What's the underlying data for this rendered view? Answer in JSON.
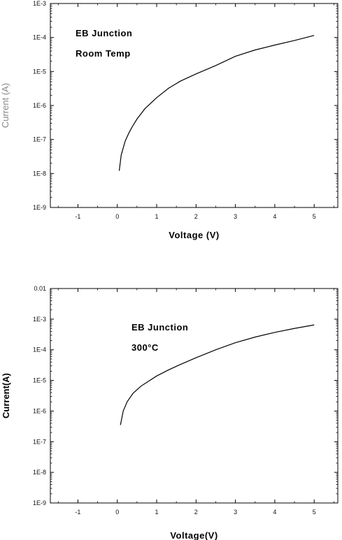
{
  "chart_data": [
    {
      "type": "line",
      "title": "",
      "xlabel": "Voltage (V)",
      "ylabel": "Current (A)",
      "yscale": "log",
      "xlim": [
        -1.7,
        5.6
      ],
      "ylim": [
        1e-09,
        0.001
      ],
      "x_ticks": [
        -1,
        0,
        1,
        2,
        3,
        4,
        5
      ],
      "y_ticks": [
        {
          "value": 0.001,
          "label": "1E-3"
        },
        {
          "value": 0.0001,
          "label": "1E-4"
        },
        {
          "value": 1e-05,
          "label": "1E-5"
        },
        {
          "value": 1e-06,
          "label": "1E-6"
        },
        {
          "value": 1e-07,
          "label": "1E-7"
        },
        {
          "value": 1e-08,
          "label": "1E-8"
        },
        {
          "value": 1e-09,
          "label": "1E-9"
        }
      ],
      "annotations": [
        "EB Junction",
        "Room Temp"
      ],
      "grid": false,
      "series": [
        {
          "x": [
            0.05,
            0.1,
            0.2,
            0.3,
            0.4,
            0.5,
            0.7,
            1.0,
            1.3,
            1.6,
            2.0,
            2.5,
            3.0,
            3.5,
            4.0,
            4.5,
            5.0
          ],
          "y": [
            1.2e-08,
            3.5e-08,
            9e-08,
            1.6e-07,
            2.6e-07,
            4e-07,
            8e-07,
            1.7e-06,
            3.2e-06,
            5.2e-06,
            8.5e-06,
            1.5e-05,
            2.8e-05,
            4.3e-05,
            6e-05,
            8.2e-05,
            0.000115
          ]
        }
      ]
    },
    {
      "type": "line",
      "title": "",
      "xlabel": "Voltage(V)",
      "ylabel": "Current(A)",
      "yscale": "log",
      "xlim": [
        -1.7,
        5.6
      ],
      "ylim": [
        1e-09,
        0.01
      ],
      "x_ticks": [
        -1,
        0,
        1,
        2,
        3,
        4,
        5
      ],
      "y_ticks": [
        {
          "value": 0.01,
          "label": "0.01"
        },
        {
          "value": 0.001,
          "label": "1E-3"
        },
        {
          "value": 0.0001,
          "label": "1E-4"
        },
        {
          "value": 1e-05,
          "label": "1E-5"
        },
        {
          "value": 1e-06,
          "label": "1E-6"
        },
        {
          "value": 1e-07,
          "label": "1E-7"
        },
        {
          "value": 1e-08,
          "label": "1E-8"
        },
        {
          "value": 1e-09,
          "label": "1E-9"
        }
      ],
      "annotations": [
        "EB Junction",
        "300°C"
      ],
      "grid": false,
      "series": [
        {
          "x": [
            0.08,
            0.15,
            0.25,
            0.4,
            0.6,
            0.8,
            1.0,
            1.3,
            1.6,
            2.0,
            2.5,
            3.0,
            3.5,
            4.0,
            4.5,
            5.0
          ],
          "y": [
            3.5e-07,
            1e-06,
            2e-06,
            3.8e-06,
            6.5e-06,
            9.5e-06,
            1.4e-05,
            2.2e-05,
            3.3e-05,
            5.5e-05,
            0.0001,
            0.00017,
            0.00026,
            0.00037,
            0.0005,
            0.00065
          ]
        }
      ]
    }
  ]
}
